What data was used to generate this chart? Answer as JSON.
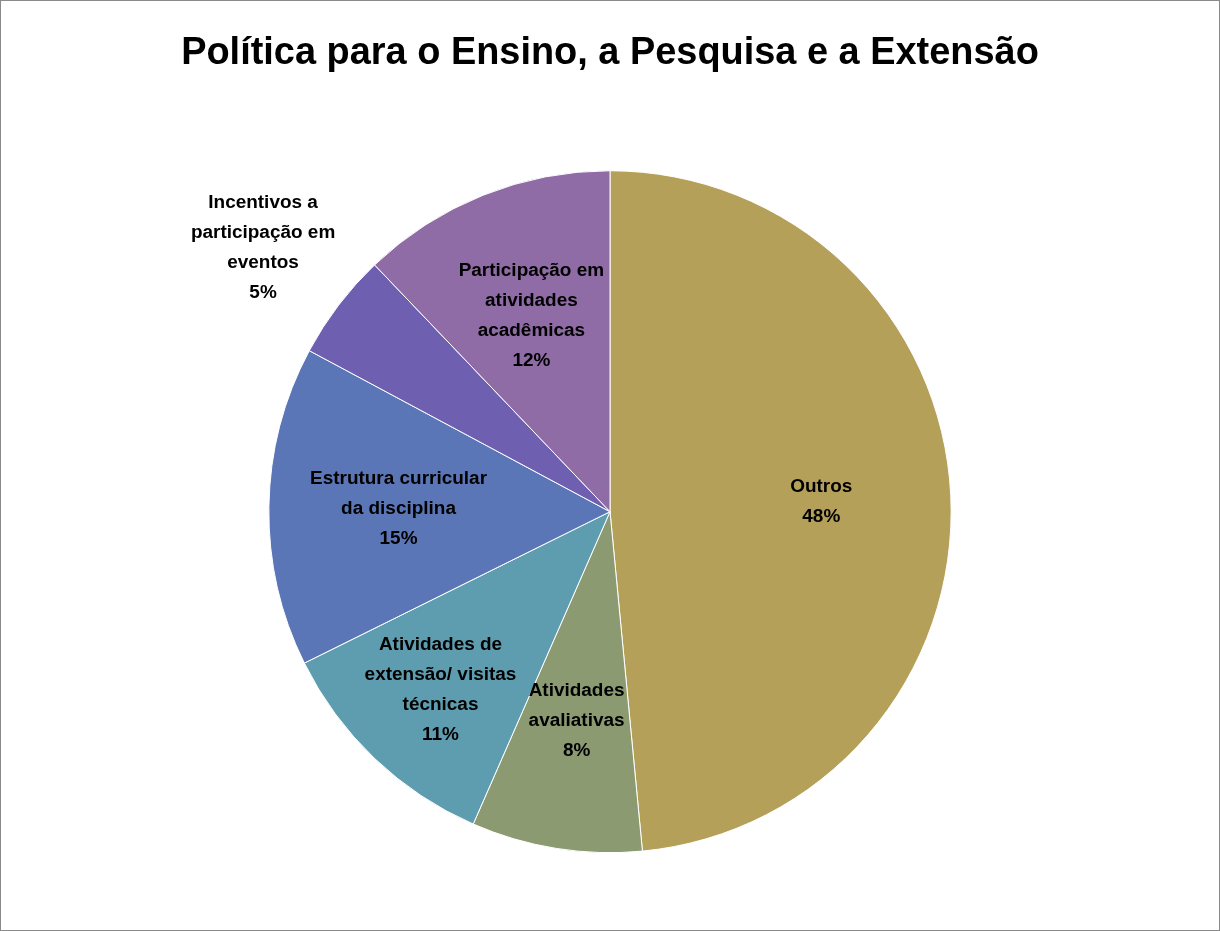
{
  "chart_data": {
    "type": "pie",
    "title": "Política para o Ensino, a Pesquisa e a Extensão",
    "categories": [
      "Outros",
      "Atividades avaliativas",
      "Atividades de extensão/ visitas técnicas",
      "Estrutura curricular da disciplina",
      "Incentivos a participação em eventos",
      "Participação em atividades acadêmicas"
    ],
    "values": [
      48,
      8,
      11,
      15,
      5,
      12
    ],
    "value_labels": [
      "48%",
      "8%",
      "11%",
      "15%",
      "5%",
      "12%"
    ],
    "colors": [
      "#b5a05a",
      "#8c9a72",
      "#5e9db0",
      "#5a76b6",
      "#6f5fb0",
      "#8f6ca6"
    ],
    "legend": false
  }
}
